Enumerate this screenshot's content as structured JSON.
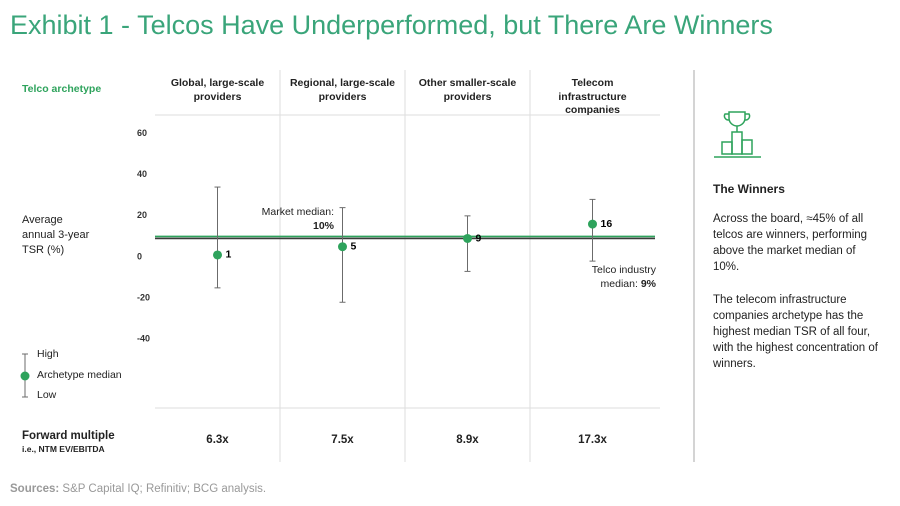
{
  "chart_data": {
    "type": "range",
    "title": "Exhibit 1 - Telcos Have Underperformed, but There Are Winners",
    "row_header": "Telco archetype",
    "categories": [
      "Global, large-scale providers",
      "Regional, large-scale providers",
      "Other smaller-scale providers",
      "Telecom infrastructure companies"
    ],
    "y_label": "Average annual 3-year TSR (%)",
    "ylim": [
      -70,
      70
    ],
    "yticks": [
      60,
      40,
      20,
      0,
      -20,
      -40
    ],
    "medians": [
      1,
      5,
      9,
      16
    ],
    "highs": [
      34,
      24,
      20,
      28
    ],
    "lows": [
      -15,
      -22,
      -7,
      -2
    ],
    "median_color": "#2ea35c",
    "whisker_color": "#6b6b6b",
    "reference_lines": [
      {
        "name": "Market median:",
        "value": 10,
        "value_label": "10%",
        "color": "#2ea35c"
      },
      {
        "name": "Telco industry median:",
        "value": 9,
        "value_label": "9%",
        "color": "#3b3b3b"
      }
    ],
    "legend": {
      "high": "High",
      "median": "Archetype median",
      "low": "Low"
    },
    "forward_multiple": {
      "title": "Forward multiple",
      "subtitle": "i.e., NTM EV/EBITDA",
      "values": [
        6.3,
        7.5,
        8.9,
        17.3
      ],
      "value_labels": [
        "6.3x",
        "7.5x",
        "8.9x",
        "17.3x"
      ]
    },
    "sidebar": {
      "title": "The Winners",
      "paragraphs": [
        "Across the board, ≈45% of all telcos are winners, performing above the market median of 10%.",
        "The telecom infrastructure companies archetype has the highest median TSR of all four, with the highest concentration of winners."
      ]
    },
    "sources_label": "Sources:",
    "sources_text": "S&P Capital IQ; Refinitiv; BCG analysis."
  }
}
